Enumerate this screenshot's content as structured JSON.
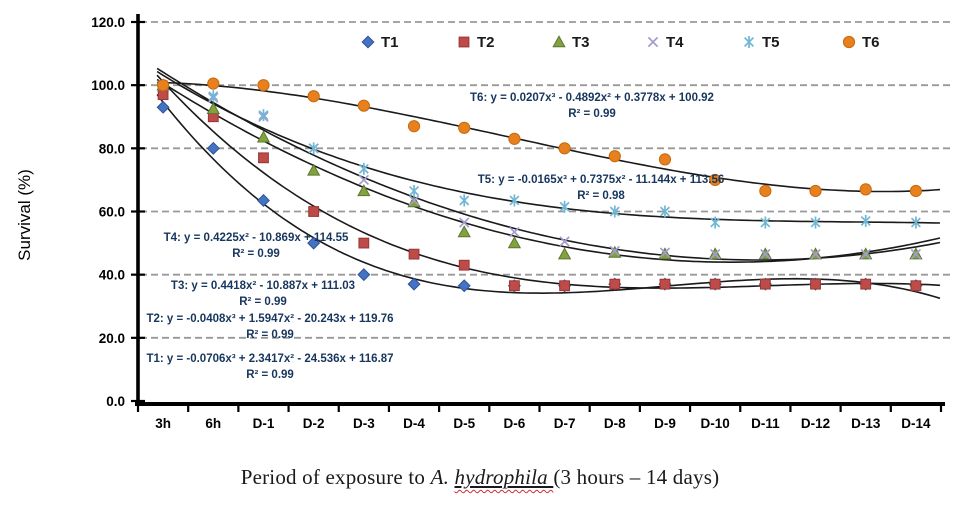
{
  "chart_data": {
    "type": "line",
    "title": "",
    "ylabel": "Survival (%)",
    "xlabel": "Period of exposure to A. hydrophila (3 hours – 14 days)",
    "ylim": [
      0,
      120
    ],
    "ytick_interval": 20,
    "y_tick_labels": [
      "0.0",
      "20.0",
      "40.0",
      "60.0",
      "80.0",
      "100.0",
      "120.0"
    ],
    "grid": "horizontal-dashed",
    "legend_position": "top-center",
    "categories": [
      "3h",
      "6h",
      "D-1",
      "D-2",
      "D-3",
      "D-4",
      "D-5",
      "D-6",
      "D-7",
      "D-8",
      "D-9",
      "D-10",
      "D-11",
      "D-12",
      "D-13",
      "D-14"
    ],
    "series": [
      {
        "name": "T1",
        "marker": "diamond",
        "color": "#4472C4",
        "edge": "#2E5395",
        "values": [
          93,
          80,
          63.5,
          50,
          40,
          37,
          36.5,
          36.5,
          36.5,
          37,
          37,
          37,
          37,
          37,
          37,
          36.5
        ],
        "fit": {
          "coeffs": [
            -0.0706,
            2.3417,
            -24.536,
            116.87
          ],
          "equation": "T1: y = -0.0706x³ + 2.3417x² - 24.536x + 116.87",
          "r2": "R² = 0.99"
        }
      },
      {
        "name": "T2",
        "marker": "square",
        "color": "#BE4B48",
        "edge": "#953735",
        "values": [
          97,
          90,
          77,
          60,
          50,
          46.5,
          43,
          36.5,
          36.5,
          37,
          37,
          37,
          37,
          37,
          37,
          36.5
        ],
        "fit": {
          "coeffs": [
            -0.0408,
            1.5947,
            -20.243,
            119.76
          ],
          "equation": "T2: y = -0.0408x³ + 1.5947x² - 20.243x + 119.76",
          "r2": "R² = 0.99"
        }
      },
      {
        "name": "T3",
        "marker": "triangle",
        "color": "#80A33E",
        "edge": "#5F7530",
        "values": [
          100,
          92.5,
          83.5,
          73,
          66.5,
          63,
          53.5,
          50,
          46.5,
          47,
          46.5,
          46.5,
          46.5,
          46.5,
          46.5,
          46.5
        ],
        "fit": {
          "coeffs": [
            0,
            0.4418,
            -10.887,
            111.03
          ],
          "equation": "T3: y = 0.4418x² - 10.887x + 111.03",
          "r2": "R² = 0.99"
        }
      },
      {
        "name": "T4",
        "marker": "x",
        "color": "#A49CCE",
        "edge": "#A49CCE",
        "values": [
          100,
          96,
          90,
          80,
          70,
          63.5,
          56.5,
          53.5,
          50.5,
          47.5,
          47,
          46.5,
          46.5,
          46.5,
          46.5,
          46.5
        ],
        "fit": {
          "coeffs": [
            0,
            0.4225,
            -10.869,
            114.55
          ],
          "equation": "T4: y = 0.4225x² - 10.869x + 114.55",
          "r2": "R² = 0.99"
        }
      },
      {
        "name": "T5",
        "marker": "asterisk",
        "color": "#6FB7D4",
        "edge": "#6FB7D4",
        "values": [
          100,
          96.5,
          90.5,
          80,
          73.5,
          66.5,
          63.5,
          63.5,
          61.5,
          60,
          60,
          56.5,
          56.5,
          56.5,
          57,
          56.5
        ],
        "fit": {
          "coeffs": [
            -0.0165,
            0.7375,
            -11.144,
            113.56
          ],
          "equation": "T5: y = -0.0165x³ + 0.7375x² - 11.144x + 113.56",
          "r2": "R² = 0.98"
        }
      },
      {
        "name": "T6",
        "marker": "circle",
        "color": "#E8811D",
        "edge": "#C4690F",
        "values": [
          100,
          100.5,
          100,
          96.5,
          93.5,
          87,
          86.5,
          83,
          80,
          77.5,
          76.5,
          70,
          66.5,
          66.5,
          67,
          66.5
        ],
        "fit": {
          "coeffs": [
            0.0207,
            -0.4892,
            0.3778,
            100.92
          ],
          "equation": "T6: y = 0.0207x³ - 0.4892x² + 0.3778x + 100.92",
          "r2": "R² = 0.99"
        }
      }
    ]
  },
  "caption": {
    "prefix": "Period of exposure to ",
    "species_genus": "A. ",
    "species_name": "hydrophila ",
    "suffix": "(3 hours – 14 days)"
  },
  "colors": {
    "trendline": "#1a1a1a",
    "grid": "#999999",
    "axis": "#000000",
    "equation_text": "#17365D"
  }
}
